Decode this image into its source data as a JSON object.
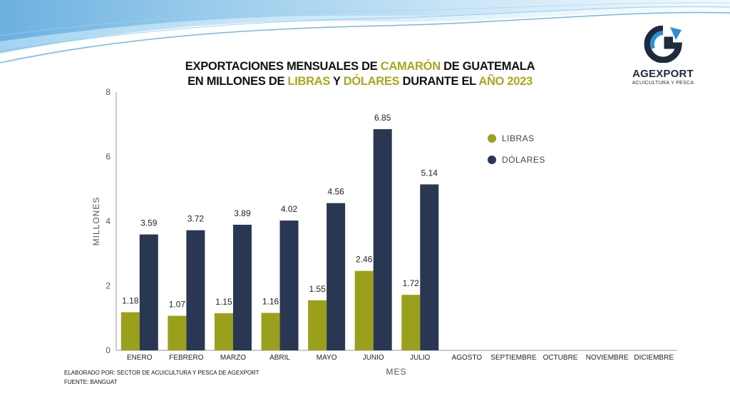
{
  "title": {
    "line1": [
      "EXPORTACIONES MENSUALES DE ",
      "CAMARÓN",
      " DE GUATEMALA"
    ],
    "line2": [
      "EN MILLONES DE ",
      "LIBRAS",
      " Y ",
      "DÓLARES",
      " DURANTE EL ",
      "AÑO 2023"
    ]
  },
  "logo": {
    "brand": "AGEXPORT",
    "subtitle": "ACUICULTURA Y PESCA",
    "icon": "g-arrow-icon"
  },
  "footer": {
    "line1": "ELABORADO POR: SECTOR DE ACUICULTURA Y PESCA DE AGEXPORT",
    "line2": "FUENTE:  BANGUAT"
  },
  "colors": {
    "libras": "#9aa01c",
    "dolares": "#2a3752",
    "axis": "#999999",
    "highlight": "#a9a71d"
  },
  "chart_data": {
    "type": "bar",
    "title": "EXPORTACIONES MENSUALES DE CAMARÓN DE GUATEMALA EN MILLONES DE LIBRAS Y DÓLARES DURANTE EL AÑO 2023",
    "xlabel": "MES",
    "ylabel": "MILLONES",
    "ylim": [
      0,
      8
    ],
    "yticks": [
      0,
      2,
      4,
      6,
      8
    ],
    "grid": false,
    "legend": "right",
    "categories": [
      "ENERO",
      "FEBRERO",
      "MARZO",
      "ABRIL",
      "MAYO",
      "JUNIO",
      "JULIO",
      "AGOSTO",
      "SEPTIEMBRE",
      "OCTUBRE",
      "NOVIEMBRE",
      "DICIEMBRE"
    ],
    "series": [
      {
        "name": "LIBRAS",
        "values": [
          1.18,
          1.07,
          1.15,
          1.16,
          1.55,
          2.46,
          1.72,
          null,
          null,
          null,
          null,
          null
        ]
      },
      {
        "name": "DÓLARES",
        "values": [
          3.59,
          3.72,
          3.89,
          4.02,
          4.56,
          6.85,
          5.14,
          null,
          null,
          null,
          null,
          null
        ]
      }
    ]
  }
}
